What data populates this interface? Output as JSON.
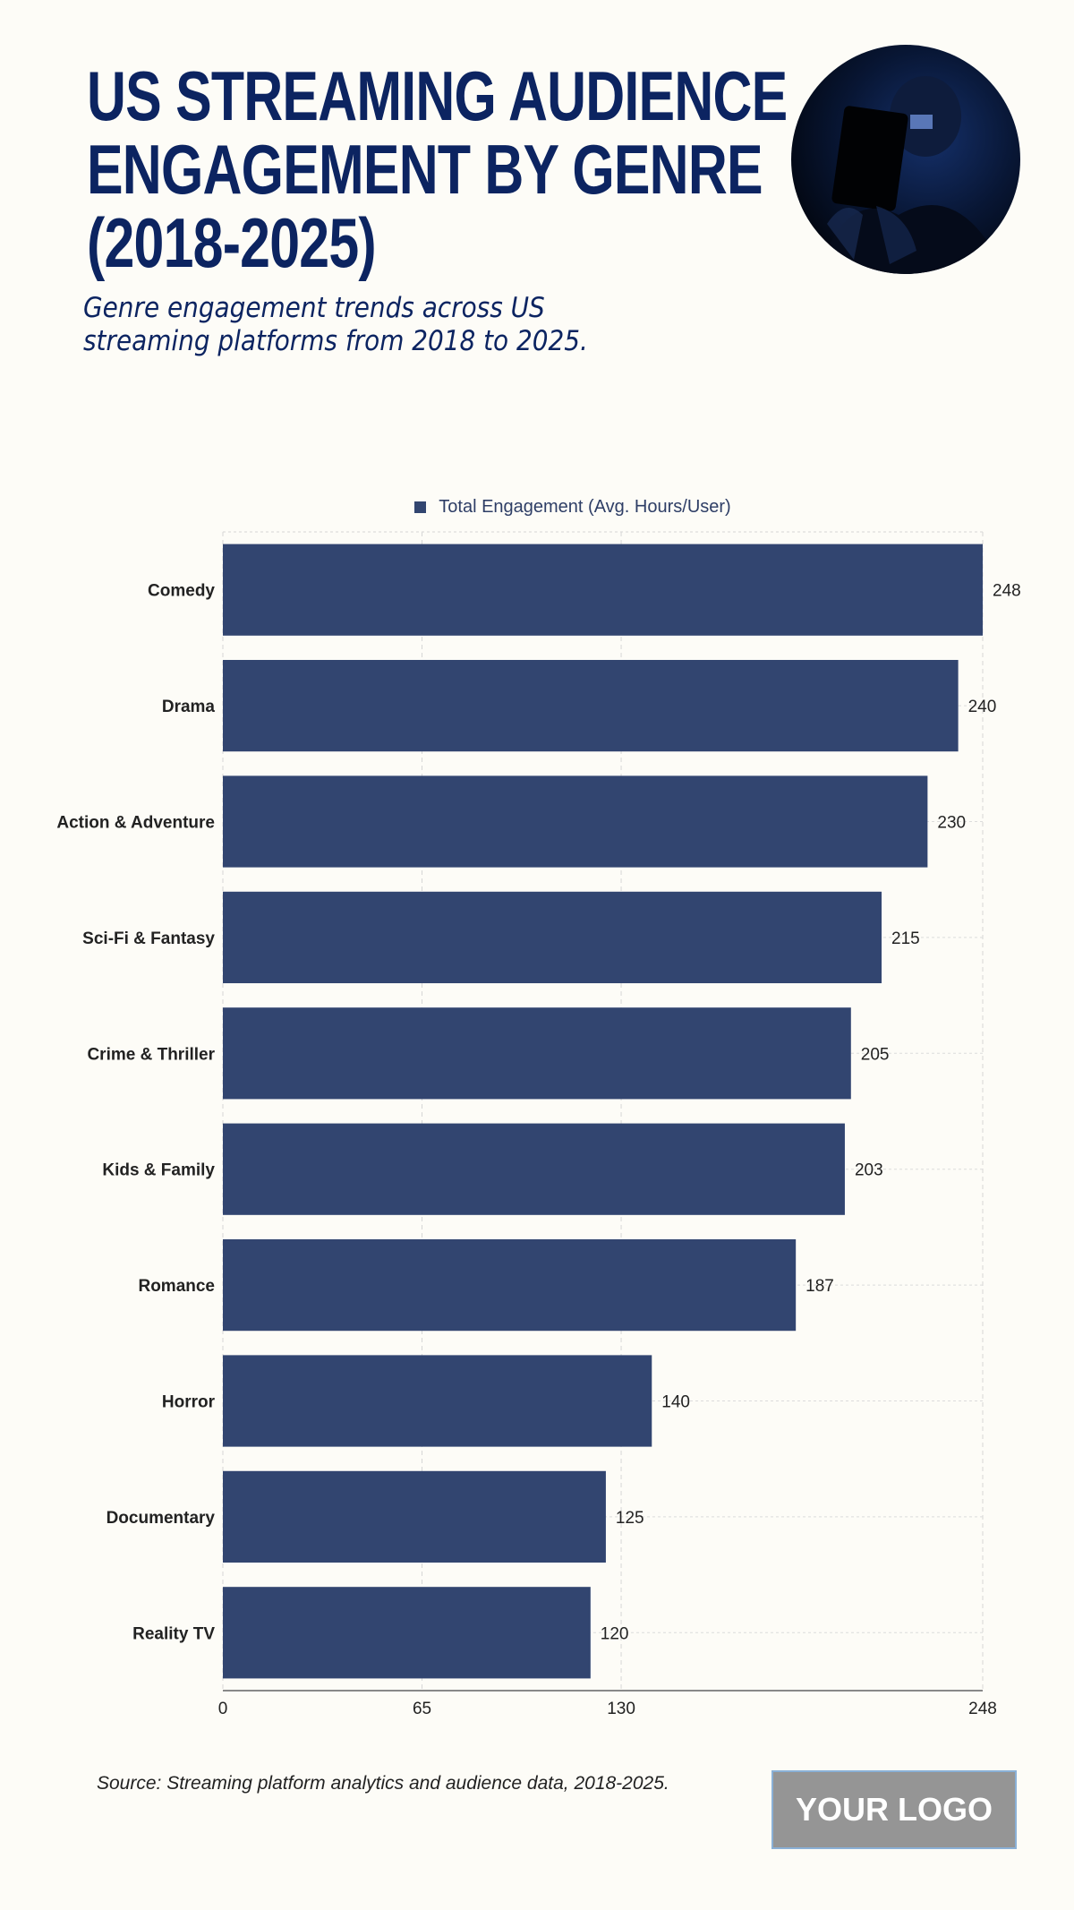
{
  "header": {
    "title_lines": [
      "US STREAMING AUDIENCE",
      "ENGAGEMENT BY GENRE",
      "(2018-2025)"
    ],
    "subtitle": "Genre engagement trends across US streaming platforms from 2018 to 2025."
  },
  "footer": {
    "source": "Source: Streaming platform analytics and audience data, 2018-2025.",
    "logo": "YOUR LOGO"
  },
  "colors": {
    "bar": "#324570",
    "title": "#0c2461"
  },
  "chart_data": {
    "type": "bar",
    "orientation": "horizontal",
    "categories": [
      "Comedy",
      "Drama",
      "Action & Adventure",
      "Sci-Fi & Fantasy",
      "Crime & Thriller",
      "Kids & Family",
      "Romance",
      "Horror",
      "Documentary",
      "Reality TV"
    ],
    "series": [
      {
        "name": "Total Engagement (Avg. Hours/User)",
        "values": [
          248,
          240,
          230,
          215,
          205,
          203,
          187,
          140,
          125,
          120
        ]
      }
    ],
    "xlim": [
      0,
      248
    ],
    "xticks": [
      0,
      65,
      130,
      248
    ],
    "grid": true,
    "legend": "top",
    "data_labels": true
  }
}
